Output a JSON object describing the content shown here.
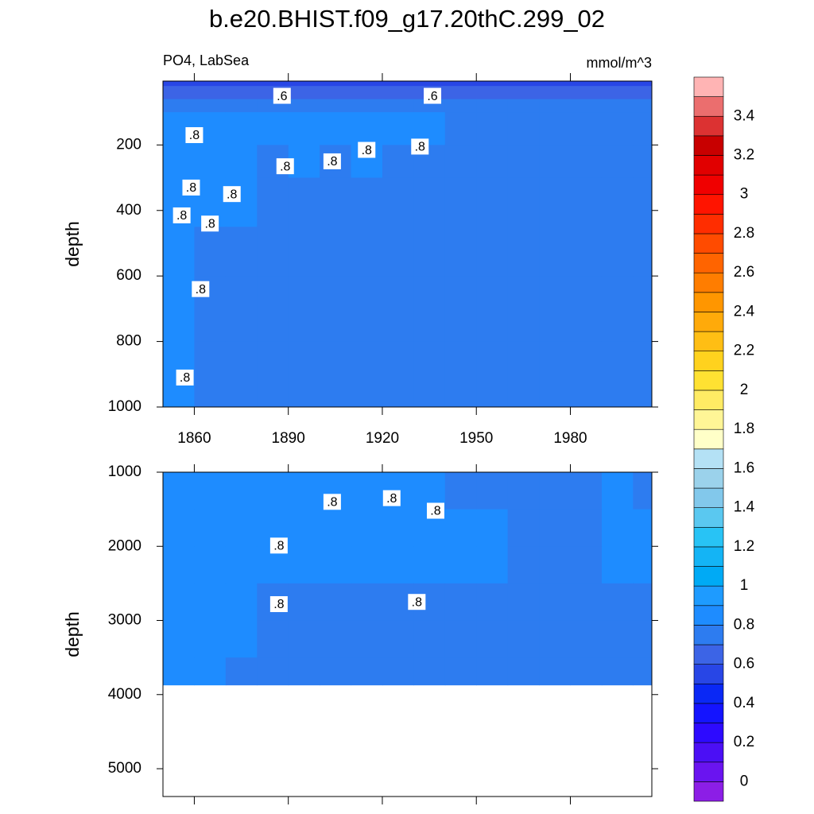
{
  "chart_data": {
    "type": "contour",
    "title": "b.e20.BHIST.f09_g17.20thC.299_02",
    "subtitle_left": "PO4, LabSea",
    "subtitle_right": "mmol/m^3",
    "x_bins": [
      1850,
      1860,
      1870,
      1880,
      1890,
      1900,
      1910,
      1920,
      1930,
      1940,
      1950,
      1960,
      1970,
      1980,
      1990,
      2000,
      2006
    ],
    "xlim": [
      1850,
      2006
    ],
    "xticks": [
      1860,
      1890,
      1920,
      1950,
      1980
    ],
    "panels": [
      {
        "ylabel": "depth",
        "ylim": [
          1000,
          5
        ],
        "yticks": [
          200,
          400,
          600,
          800,
          1000
        ],
        "show_xtick_labels": true,
        "depth_bins": [
          5,
          20,
          60,
          100,
          200,
          300,
          450,
          600,
          800,
          1000
        ],
        "values": [
          [
            0.55,
            0.55,
            0.55,
            0.55,
            0.55,
            0.55,
            0.55,
            0.55,
            0.55,
            0.55,
            0.55,
            0.55,
            0.55,
            0.55,
            0.55,
            0.55
          ],
          [
            0.65,
            0.65,
            0.65,
            0.65,
            0.65,
            0.65,
            0.65,
            0.65,
            0.65,
            0.65,
            0.65,
            0.65,
            0.65,
            0.65,
            0.65,
            0.65
          ],
          [
            0.75,
            0.75,
            0.75,
            0.75,
            0.75,
            0.75,
            0.75,
            0.75,
            0.75,
            0.75,
            0.75,
            0.75,
            0.75,
            0.75,
            0.75,
            0.75
          ],
          [
            0.85,
            0.85,
            0.85,
            0.85,
            0.85,
            0.85,
            0.85,
            0.85,
            0.85,
            0.75,
            0.75,
            0.75,
            0.75,
            0.75,
            0.75,
            0.75
          ],
          [
            0.85,
            0.85,
            0.85,
            0.75,
            0.85,
            0.75,
            0.85,
            0.75,
            0.75,
            0.75,
            0.75,
            0.75,
            0.75,
            0.75,
            0.75,
            0.75
          ],
          [
            0.85,
            0.85,
            0.85,
            0.75,
            0.75,
            0.75,
            0.75,
            0.75,
            0.75,
            0.75,
            0.75,
            0.75,
            0.75,
            0.75,
            0.75,
            0.75
          ],
          [
            0.85,
            0.75,
            0.75,
            0.75,
            0.75,
            0.75,
            0.75,
            0.75,
            0.75,
            0.75,
            0.75,
            0.75,
            0.75,
            0.75,
            0.75,
            0.75
          ],
          [
            0.85,
            0.75,
            0.75,
            0.75,
            0.75,
            0.75,
            0.75,
            0.75,
            0.75,
            0.75,
            0.75,
            0.75,
            0.75,
            0.75,
            0.75,
            0.75
          ],
          [
            0.85,
            0.75,
            0.75,
            0.75,
            0.75,
            0.75,
            0.75,
            0.75,
            0.75,
            0.75,
            0.75,
            0.75,
            0.75,
            0.75,
            0.75,
            0.75
          ]
        ],
        "contour_labels": [
          {
            "value": 0.6,
            "label": ".6",
            "x": 1888,
            "depth": 50
          },
          {
            "value": 0.6,
            "label": ".6",
            "x": 1936,
            "depth": 50
          },
          {
            "value": 0.8,
            "label": ".8",
            "x": 1860,
            "depth": 170
          },
          {
            "value": 0.8,
            "label": ".8",
            "x": 1889,
            "depth": 265
          },
          {
            "value": 0.8,
            "label": ".8",
            "x": 1904,
            "depth": 250
          },
          {
            "value": 0.8,
            "label": ".8",
            "x": 1915,
            "depth": 215
          },
          {
            "value": 0.8,
            "label": ".8",
            "x": 1932,
            "depth": 205
          },
          {
            "value": 0.8,
            "label": ".8",
            "x": 1859,
            "depth": 330
          },
          {
            "value": 0.8,
            "label": ".8",
            "x": 1872,
            "depth": 350
          },
          {
            "value": 0.8,
            "label": ".8",
            "x": 1856,
            "depth": 415
          },
          {
            "value": 0.8,
            "label": ".8",
            "x": 1865,
            "depth": 440
          },
          {
            "value": 0.8,
            "label": ".8",
            "x": 1862,
            "depth": 640
          },
          {
            "value": 0.8,
            "label": ".8",
            "x": 1857,
            "depth": 910
          }
        ]
      },
      {
        "ylabel": "depth",
        "ylim": [
          5375,
          1000
        ],
        "yticks": [
          1000,
          2000,
          3000,
          4000,
          5000
        ],
        "show_xtick_labels": false,
        "depth_bins": [
          1000,
          1500,
          2000,
          2500,
          3000,
          3500,
          3870
        ],
        "values": [
          [
            0.85,
            0.85,
            0.85,
            0.85,
            0.85,
            0.85,
            0.85,
            0.85,
            0.85,
            0.75,
            0.75,
            0.75,
            0.75,
            0.75,
            0.85,
            0.75
          ],
          [
            0.85,
            0.85,
            0.85,
            0.85,
            0.85,
            0.85,
            0.85,
            0.85,
            0.85,
            0.85,
            0.85,
            0.75,
            0.75,
            0.75,
            0.85,
            0.85
          ],
          [
            0.85,
            0.85,
            0.85,
            0.85,
            0.85,
            0.85,
            0.85,
            0.85,
            0.85,
            0.85,
            0.85,
            0.75,
            0.75,
            0.75,
            0.85,
            0.85
          ],
          [
            0.85,
            0.85,
            0.85,
            0.75,
            0.75,
            0.75,
            0.75,
            0.75,
            0.75,
            0.75,
            0.75,
            0.75,
            0.75,
            0.75,
            0.75,
            0.75
          ],
          [
            0.85,
            0.85,
            0.85,
            0.75,
            0.75,
            0.75,
            0.75,
            0.75,
            0.75,
            0.75,
            0.75,
            0.75,
            0.75,
            0.75,
            0.75,
            0.75
          ],
          [
            0.85,
            0.85,
            0.75,
            0.75,
            0.75,
            0.75,
            0.75,
            0.75,
            0.75,
            0.75,
            0.75,
            0.75,
            0.75,
            0.75,
            0.75,
            0.75
          ]
        ],
        "contour_labels": [
          {
            "value": 0.8,
            "label": ".8",
            "x": 1904,
            "depth": 1400
          },
          {
            "value": 0.8,
            "label": ".8",
            "x": 1923,
            "depth": 1350
          },
          {
            "value": 0.8,
            "label": ".8",
            "x": 1937,
            "depth": 1520
          },
          {
            "value": 0.8,
            "label": ".8",
            "x": 1887,
            "depth": 1990
          },
          {
            "value": 0.8,
            "label": ".8",
            "x": 1887,
            "depth": 2780
          },
          {
            "value": 0.8,
            "label": ".8",
            "x": 1931,
            "depth": 2750
          }
        ]
      }
    ],
    "colorbar": {
      "levels": [
        0,
        0.1,
        0.2,
        0.3,
        0.4,
        0.5,
        0.6,
        0.7,
        0.8,
        0.9,
        1,
        1.1,
        1.2,
        1.3,
        1.4,
        1.5,
        1.6,
        1.7,
        1.8,
        1.9,
        2,
        2.1,
        2.2,
        2.3,
        2.4,
        2.5,
        2.6,
        2.7,
        2.8,
        2.9,
        3,
        3.1,
        3.2,
        3.3,
        3.4,
        3.5
      ],
      "ticks": [
        0,
        0.2,
        0.4,
        0.6,
        0.8,
        1,
        1.2,
        1.4,
        1.6,
        1.8,
        2,
        2.2,
        2.4,
        2.6,
        2.8,
        3,
        3.2,
        3.4
      ],
      "colors": [
        "#8c1ee6",
        "#6a14f0",
        "#4b0ff5",
        "#2d0aff",
        "#1414ff",
        "#0a28f5",
        "#2846e6",
        "#3c64e6",
        "#2d7cf0",
        "#1e8cff",
        "#1e9bff",
        "#00aaf5",
        "#14b4f5",
        "#28c3f5",
        "#5ac8f0",
        "#82c8eb",
        "#9bd2eb",
        "#b4e1f5",
        "#ffffc8",
        "#fff596",
        "#ffeb64",
        "#ffe132",
        "#ffd21e",
        "#ffbe14",
        "#ffaa0a",
        "#ff9600",
        "#ff7d00",
        "#ff6400",
        "#ff4b00",
        "#ff2d00",
        "#ff1400",
        "#f00000",
        "#e10000",
        "#c80000",
        "#dc3232",
        "#eb6e6e",
        "#ffb4b4"
      ]
    }
  }
}
